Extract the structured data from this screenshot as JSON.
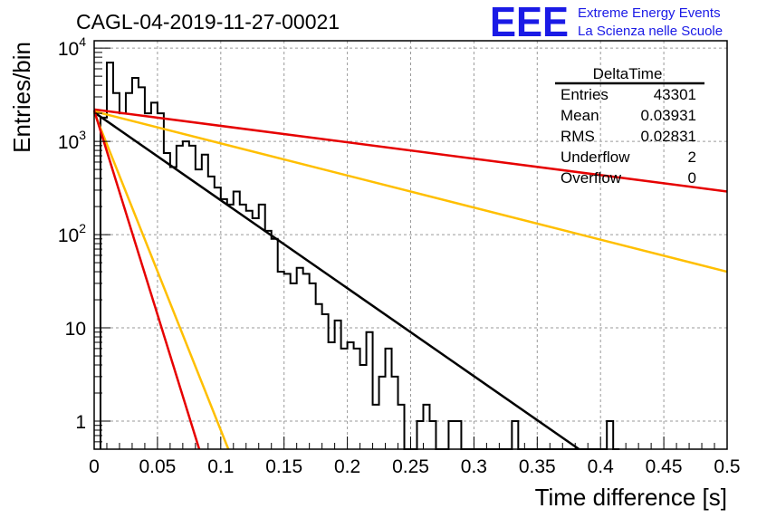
{
  "chart_data": {
    "type": "line",
    "title": "CAGL-04-2019-11-27-00021",
    "xlabel": "Time difference [s]",
    "ylabel": "Entries/bin",
    "xlim": [
      0,
      0.5
    ],
    "ylim": [
      0.5,
      12000
    ],
    "yscale": "log",
    "grid": true,
    "x_ticks": [
      "0",
      "0.05",
      "0.1",
      "0.15",
      "0.2",
      "0.25",
      "0.3",
      "0.35",
      "0.4",
      "0.45",
      "0.5"
    ],
    "y_ticks": [
      {
        "value": 1,
        "base": "1",
        "exp": ""
      },
      {
        "value": 10,
        "base": "10",
        "exp": ""
      },
      {
        "value": 100,
        "base": "10",
        "exp": "2"
      },
      {
        "value": 1000,
        "base": "10",
        "exp": "3"
      },
      {
        "value": 10000,
        "base": "10",
        "exp": "4"
      }
    ],
    "histogram": {
      "name": "DeltaTime",
      "color": "#000000",
      "bin_width": 0.005,
      "bin_starts": [
        0.005,
        0.01,
        0.015,
        0.02,
        0.025,
        0.03,
        0.035,
        0.04,
        0.045,
        0.05,
        0.055,
        0.06,
        0.065,
        0.07,
        0.075,
        0.08,
        0.085,
        0.09,
        0.095,
        0.1,
        0.105,
        0.11,
        0.115,
        0.12,
        0.125,
        0.13,
        0.135,
        0.14,
        0.145,
        0.15,
        0.155,
        0.16,
        0.165,
        0.17,
        0.175,
        0.18,
        0.185,
        0.19,
        0.195,
        0.2,
        0.205,
        0.21,
        0.215,
        0.22,
        0.225,
        0.23,
        0.235,
        0.24,
        0.245,
        0.25,
        0.255,
        0.26,
        0.265,
        0.27,
        0.275,
        0.28,
        0.285,
        0.29,
        0.295,
        0.3,
        0.305,
        0.31,
        0.315,
        0.32,
        0.325,
        0.33,
        0.335,
        0.34,
        0.345,
        0.35,
        0.355,
        0.36,
        0.365,
        0.37,
        0.375,
        0.38,
        0.385,
        0.39,
        0.395,
        0.4,
        0.405,
        0.41
      ],
      "counts": [
        1800,
        7000,
        3300,
        2000,
        3300,
        4800,
        3800,
        2000,
        2600,
        2000,
        750,
        530,
        900,
        1000,
        900,
        500,
        720,
        420,
        320,
        240,
        210,
        290,
        210,
        180,
        150,
        210,
        110,
        90,
        40,
        38,
        30,
        44,
        38,
        30,
        18,
        14,
        7,
        12,
        6,
        7,
        6,
        4,
        9,
        1.5,
        3,
        6,
        3,
        1.5,
        0.4,
        0.4,
        1,
        1.5,
        1,
        0.4,
        0.4,
        1,
        1,
        0.4,
        0.4,
        0.4,
        0.4,
        0.4,
        0.4,
        0.4,
        0.4,
        1,
        0.4,
        0.4,
        0.4,
        0.4,
        0.4,
        0.4,
        0.4,
        0.4,
        0.4,
        0.4,
        0.4,
        0.4,
        0.4,
        0.4,
        1,
        0.4
      ]
    },
    "series": [
      {
        "color": "#e60000",
        "x": [
          0,
          0.5
        ],
        "y": [
          2200,
          290
        ]
      },
      {
        "color": "#ffbf00",
        "x": [
          0,
          0.5
        ],
        "y": [
          2100,
          40
        ]
      },
      {
        "color": "#000000",
        "x": [
          0,
          0.383
        ],
        "y": [
          2050,
          0.5
        ]
      },
      {
        "color": "#ffbf00",
        "x": [
          0,
          0.106
        ],
        "y": [
          2050,
          0.5
        ]
      },
      {
        "color": "#e60000",
        "x": [
          0,
          0.083
        ],
        "y": [
          2150,
          0.5
        ]
      }
    ],
    "stats_box": {
      "title": "DeltaTime",
      "rows": [
        {
          "label": "Entries",
          "value": "43301"
        },
        {
          "label": "Mean",
          "value": "0.03931"
        },
        {
          "label": "RMS",
          "value": "0.02831"
        },
        {
          "label": "Underflow",
          "value": "2"
        },
        {
          "label": "Overflow",
          "value": "0"
        }
      ]
    }
  },
  "logo": {
    "text": "EEE",
    "line1": "Extreme Energy Events",
    "line2": "La Scienza nelle Scuole"
  }
}
